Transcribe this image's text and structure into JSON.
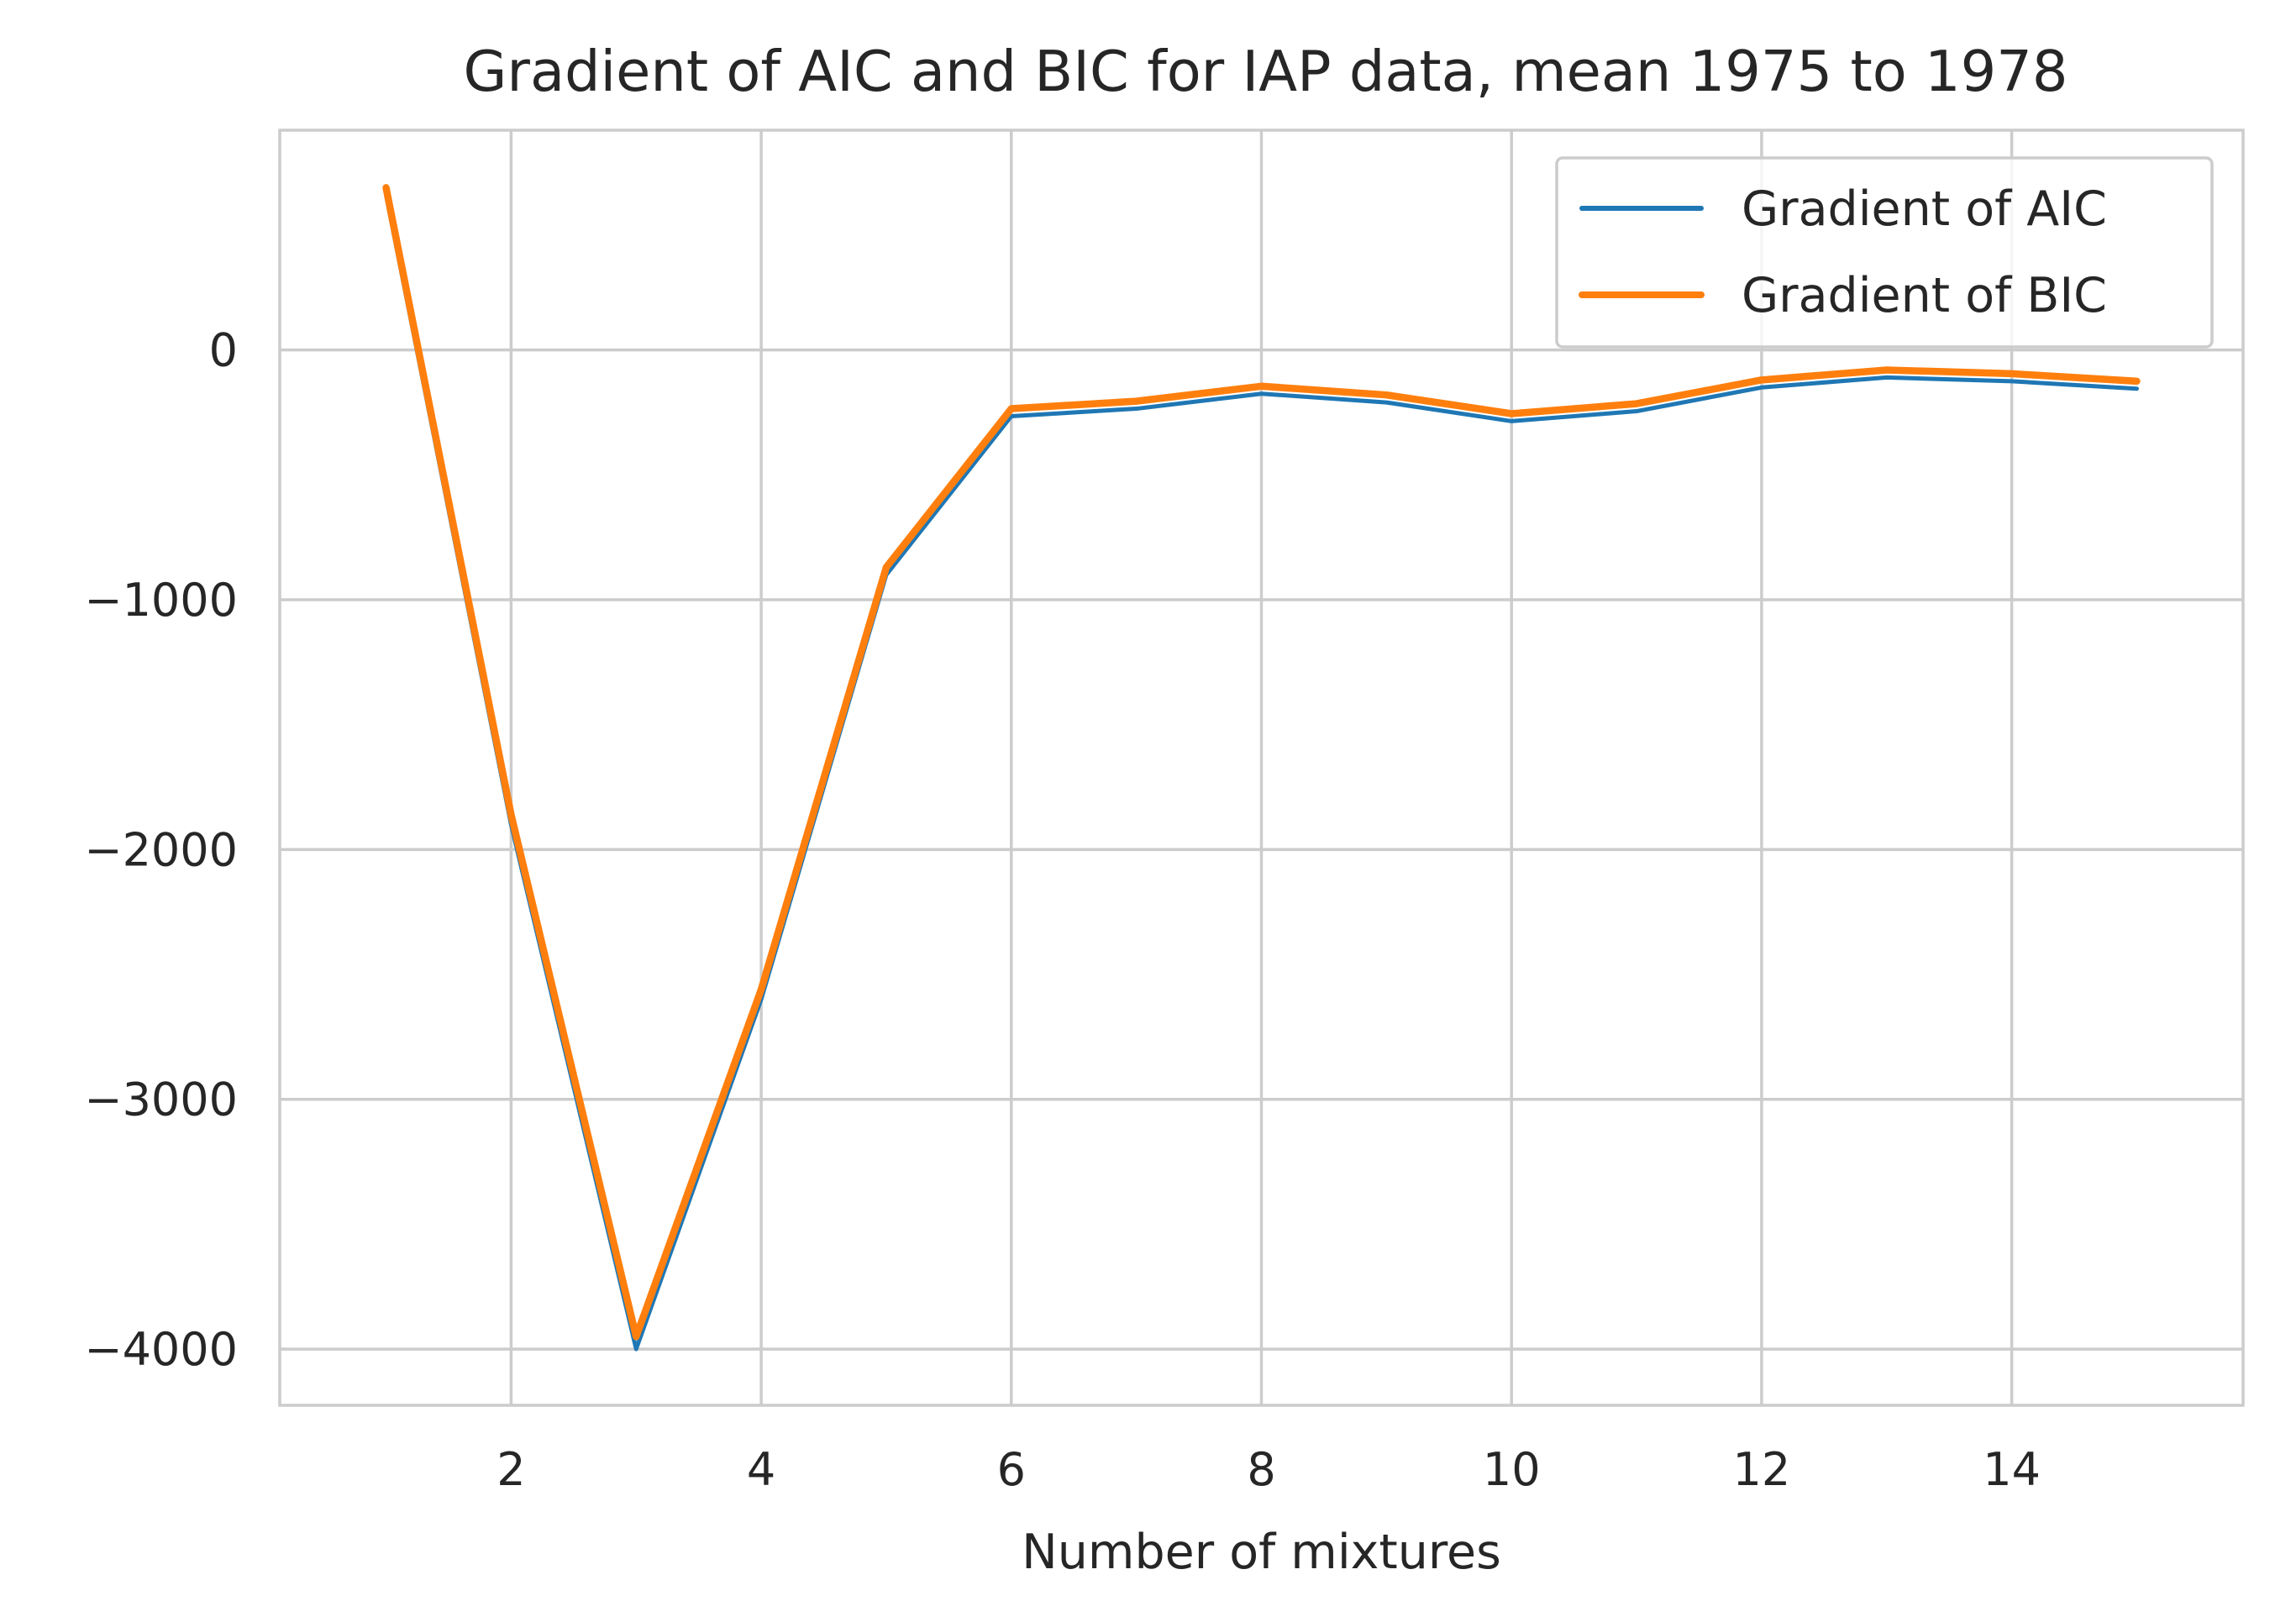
{
  "chart_data": {
    "type": "line",
    "title": "Gradient of AIC and BIC for IAP data, mean 1975 to 1978",
    "xlabel": "Number of mixtures",
    "ylabel": "",
    "x": [
      1,
      2,
      3,
      4,
      5,
      6,
      7,
      8,
      9,
      10,
      11,
      12,
      13,
      14,
      15
    ],
    "xlim": [
      0.15,
      15.85
    ],
    "ylim": [
      -4225,
      880
    ],
    "xticks": [
      2,
      4,
      6,
      8,
      10,
      12,
      14
    ],
    "xtick_labels": [
      "2",
      "4",
      "6",
      "8",
      "10",
      "12",
      "14"
    ],
    "yticks": [
      0,
      -1000,
      -2000,
      -3000,
      -4000
    ],
    "ytick_labels": [
      "0",
      "−1000",
      "−2000",
      "−3000",
      "−4000"
    ],
    "grid": true,
    "legend_position": "top-right",
    "series": [
      {
        "name": "Gradient of AIC",
        "color": "#1f77b4",
        "values": [
          620,
          -1900,
          -4000,
          -2600,
          -900,
          -265,
          -235,
          -175,
          -210,
          -285,
          -245,
          -150,
          -110,
          -125,
          -155
        ]
      },
      {
        "name": "Gradient of BIC",
        "color": "#ff7f0e",
        "values": [
          650,
          -1860,
          -3950,
          -2560,
          -870,
          -235,
          -205,
          -145,
          -180,
          -255,
          -215,
          -120,
          -80,
          -95,
          -125
        ]
      }
    ]
  }
}
